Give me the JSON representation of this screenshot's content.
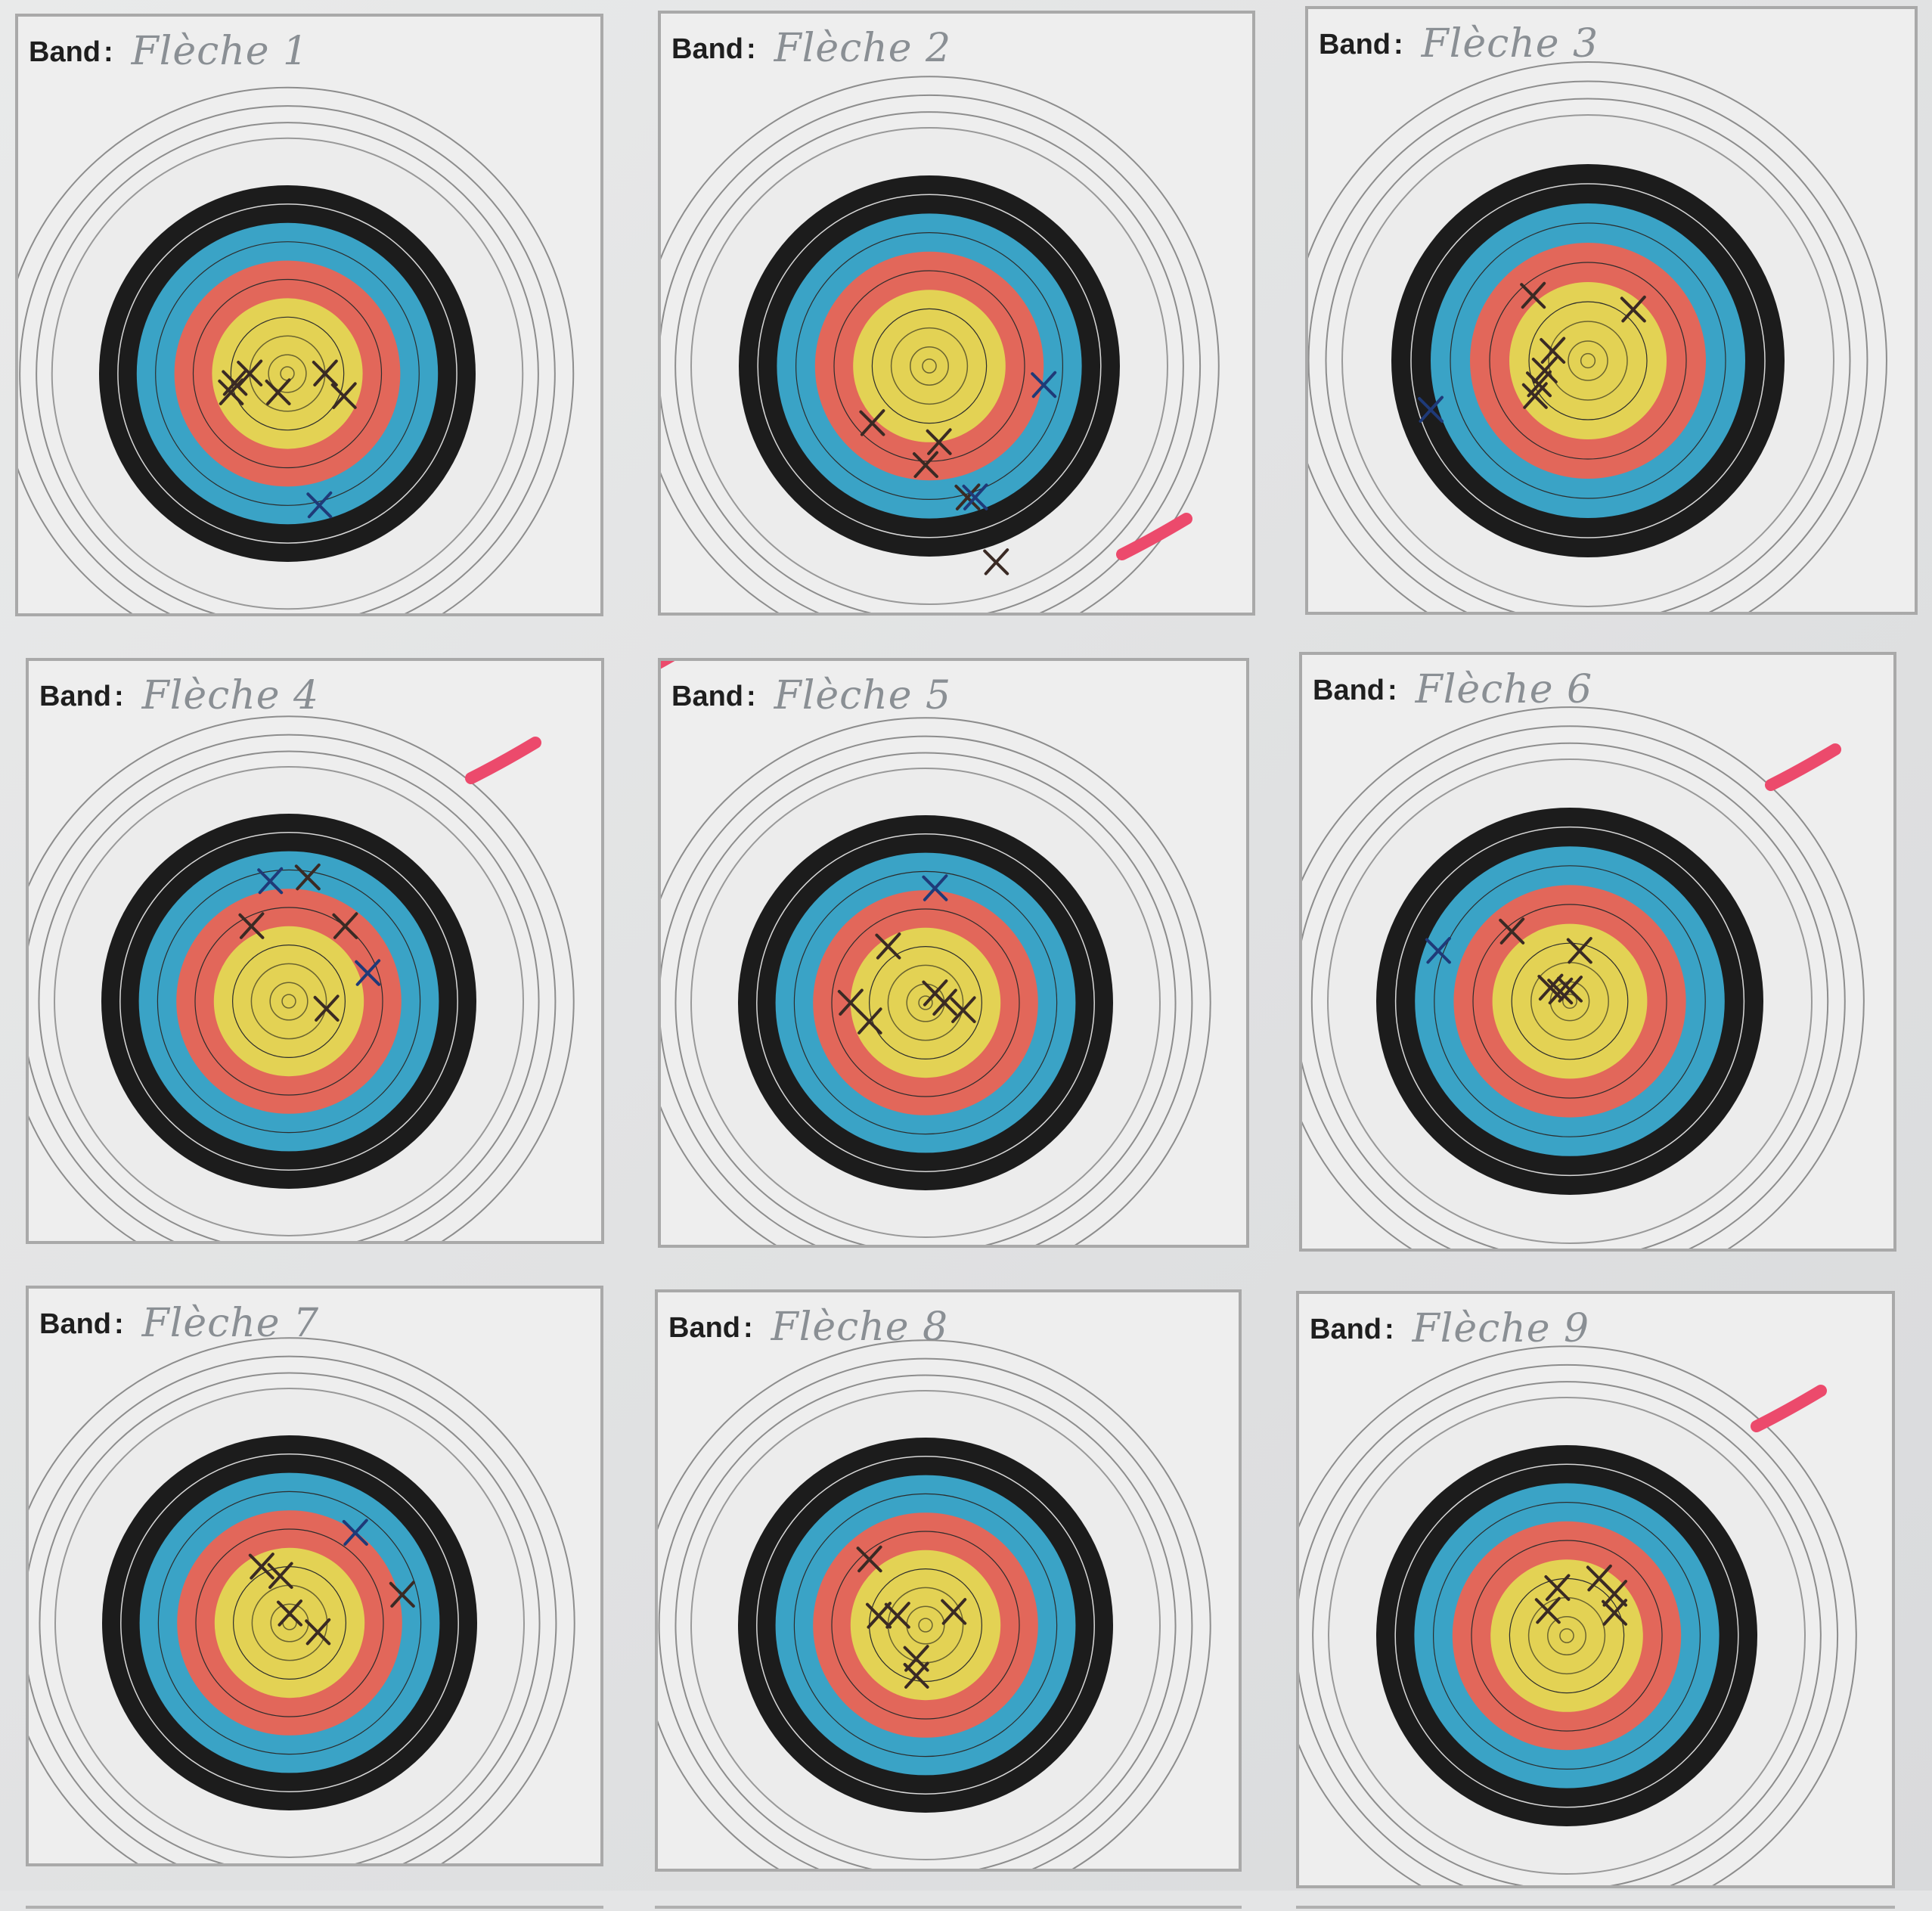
{
  "sheet": {
    "band_label": "Band",
    "band_separator": ":",
    "targets": [
      {
        "id": 1,
        "name": "Flèche 1",
        "hits_black": [
          [
            -0.28,
            0.05
          ],
          [
            -0.2,
            0.0
          ],
          [
            -0.3,
            0.1
          ],
          [
            0.2,
            0.0
          ],
          [
            -0.05,
            0.1
          ],
          [
            0.3,
            0.12
          ]
        ],
        "hits_blue": [
          [
            0.17,
            0.7
          ]
        ],
        "pink_mark": false
      },
      {
        "id": 2,
        "name": "Flèche 2",
        "hits_black": [
          [
            -0.3,
            0.3
          ],
          [
            0.05,
            0.4
          ],
          [
            -0.02,
            0.52
          ],
          [
            0.2,
            0.69
          ],
          [
            0.35,
            1.03
          ]
        ],
        "hits_blue": [
          [
            0.6,
            0.1
          ],
          [
            0.24,
            0.69
          ]
        ],
        "pink_mark": true
      },
      {
        "id": 3,
        "name": "Flèche 3",
        "hits_black": [
          [
            -0.28,
            -0.33
          ],
          [
            0.23,
            -0.26
          ],
          [
            -0.18,
            -0.05
          ],
          [
            -0.22,
            0.05
          ],
          [
            -0.27,
            0.18
          ],
          [
            -0.25,
            0.12
          ]
        ],
        "hits_blue": [
          [
            -0.8,
            0.25
          ]
        ],
        "pink_mark": false
      },
      {
        "id": 4,
        "name": "Flèche 4",
        "hits_black": [
          [
            -0.2,
            -0.4
          ],
          [
            0.3,
            -0.4
          ],
          [
            0.1,
            -0.66
          ],
          [
            0.2,
            0.04
          ]
        ],
        "hits_blue": [
          [
            -0.1,
            -0.64
          ],
          [
            0.42,
            -0.15
          ]
        ],
        "pink_mark": true
      },
      {
        "id": 5,
        "name": "Flèche 5",
        "hits_black": [
          [
            -0.2,
            -0.3
          ],
          [
            -0.4,
            0.0
          ],
          [
            -0.3,
            0.1
          ],
          [
            0.05,
            -0.05
          ],
          [
            0.2,
            0.04
          ],
          [
            0.1,
            0.0
          ]
        ],
        "hits_blue": [
          [
            0.05,
            -0.61
          ]
        ],
        "pink_mark": true
      },
      {
        "id": 6,
        "name": "Flèche 6",
        "hits_black": [
          [
            -0.3,
            -0.36
          ],
          [
            0.05,
            -0.26
          ],
          [
            -0.1,
            -0.07
          ],
          [
            -0.05,
            -0.05
          ],
          [
            0.0,
            -0.06
          ]
        ],
        "hits_blue": [
          [
            -0.68,
            -0.26
          ]
        ],
        "pink_mark": true
      },
      {
        "id": 7,
        "name": "Flèche 7",
        "hits_black": [
          [
            -0.15,
            -0.3
          ],
          [
            -0.05,
            -0.25
          ],
          [
            0.0,
            -0.05
          ],
          [
            0.15,
            0.05
          ],
          [
            0.6,
            -0.15
          ]
        ],
        "hits_blue": [
          [
            0.35,
            -0.48
          ]
        ],
        "pink_mark": false
      },
      {
        "id": 8,
        "name": "Flèche 8",
        "hits_black": [
          [
            -0.3,
            -0.35
          ],
          [
            -0.25,
            -0.05
          ],
          [
            -0.15,
            -0.05
          ],
          [
            0.15,
            -0.07
          ],
          [
            -0.05,
            0.18
          ],
          [
            -0.05,
            0.27
          ]
        ],
        "hits_blue": [],
        "pink_mark": false
      },
      {
        "id": 9,
        "name": "Flèche 9",
        "hits_black": [
          [
            -0.05,
            -0.25
          ],
          [
            0.17,
            -0.3
          ],
          [
            0.25,
            -0.22
          ],
          [
            0.25,
            -0.12
          ],
          [
            -0.1,
            -0.13
          ]
        ],
        "hits_blue": [],
        "pink_mark": true
      }
    ],
    "colors": {
      "gold": "#e3d254",
      "red": "#e2675a",
      "blue": "#3aa3c6",
      "black": "#1c1c1c",
      "white_ring": "#ececec",
      "hit_black": "#3a2a24",
      "hit_blue": "#1f3a78",
      "pink": "#ec4a6c"
    }
  }
}
